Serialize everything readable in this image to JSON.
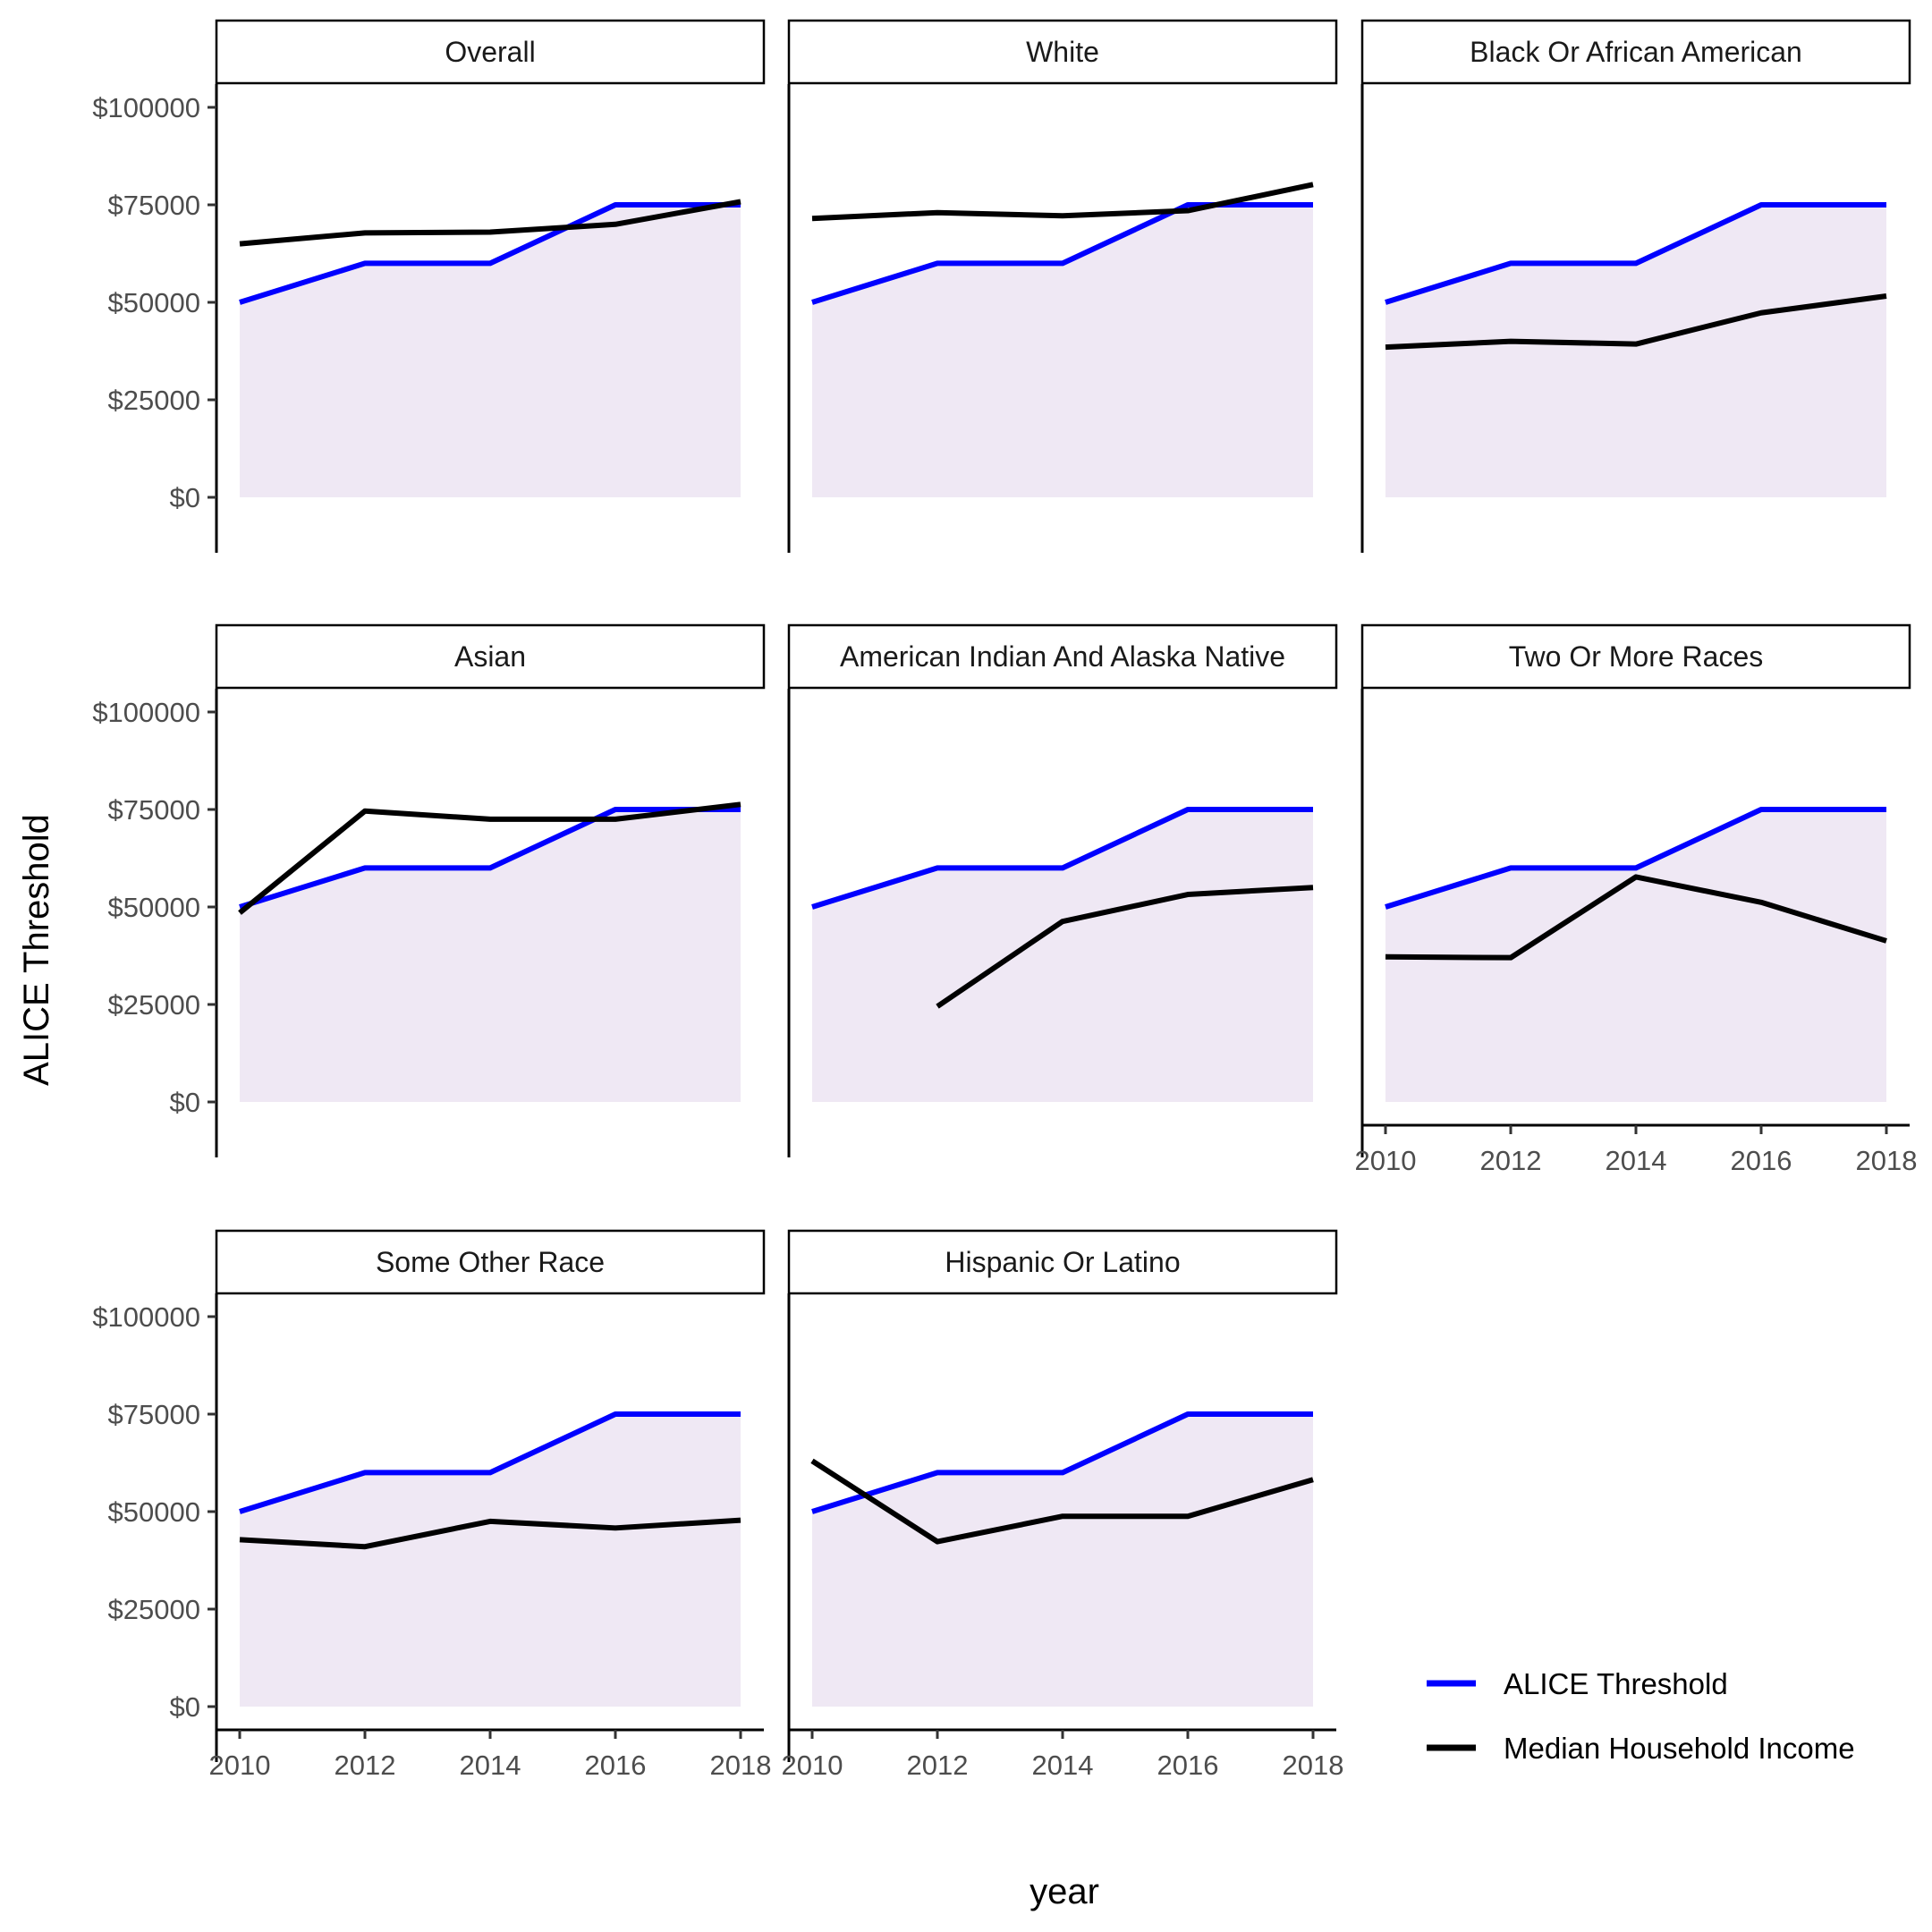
{
  "chart_data": {
    "type": "line",
    "xlabel": "year",
    "ylabel": "ALICE Threshold",
    "x_ticks": [
      "2010",
      "2012",
      "2014",
      "2016",
      "2018"
    ],
    "y_ticks": [
      "$0",
      "$25000",
      "$50000",
      "$75000",
      "$100000"
    ],
    "y_tick_values": [
      0,
      25000,
      50000,
      75000,
      100000
    ],
    "xlim": [
      2010,
      2018
    ],
    "ylim": [
      0,
      100000
    ],
    "legend": {
      "position": "bottom-right",
      "entries": [
        {
          "label": "ALICE Threshold",
          "color": "#0000ff"
        },
        {
          "label": "Median Household Income",
          "color": "#000000"
        }
      ]
    },
    "area_fill_color": "#efe8f4",
    "panels": [
      {
        "label": "Overall",
        "x": [
          2010,
          2012,
          2014,
          2016,
          2018
        ],
        "alice": [
          50000,
          60000,
          60000,
          75000,
          75000
        ],
        "median": [
          65000,
          67800,
          68000,
          70000,
          75800
        ]
      },
      {
        "label": "White",
        "x": [
          2010,
          2012,
          2014,
          2016,
          2018
        ],
        "alice": [
          50000,
          60000,
          60000,
          75000,
          75000
        ],
        "median": [
          71500,
          73000,
          72200,
          73500,
          80200
        ]
      },
      {
        "label": "Black Or African American",
        "x": [
          2010,
          2012,
          2014,
          2016,
          2018
        ],
        "alice": [
          50000,
          60000,
          60000,
          75000,
          75000
        ],
        "median": [
          38500,
          40000,
          39300,
          47300,
          51600
        ]
      },
      {
        "label": "Asian",
        "x": [
          2010,
          2012,
          2014,
          2016,
          2018
        ],
        "alice": [
          50000,
          60000,
          60000,
          75000,
          75000
        ],
        "median": [
          48500,
          74600,
          72500,
          72500,
          76300
        ]
      },
      {
        "label": "American Indian And Alaska Native",
        "x": [
          2010,
          2012,
          2014,
          2016,
          2018
        ],
        "alice": [
          50000,
          60000,
          60000,
          75000,
          75000
        ],
        "median": [
          null,
          24500,
          46300,
          53200,
          55000
        ]
      },
      {
        "label": "Two Or More Races",
        "x": [
          2010,
          2012,
          2014,
          2016,
          2018
        ],
        "alice": [
          50000,
          60000,
          60000,
          75000,
          75000
        ],
        "median": [
          37200,
          37000,
          57700,
          51200,
          41300
        ]
      },
      {
        "label": "Some Other Race",
        "x": [
          2010,
          2012,
          2014,
          2016,
          2018
        ],
        "alice": [
          50000,
          60000,
          60000,
          75000,
          75000
        ],
        "median": [
          42800,
          41000,
          47500,
          45800,
          47800
        ]
      },
      {
        "label": "Hispanic Or Latino",
        "x": [
          2010,
          2012,
          2014,
          2016,
          2018
        ],
        "alice": [
          50000,
          60000,
          60000,
          75000,
          75000
        ],
        "median": [
          63000,
          42300,
          48800,
          48800,
          58200
        ]
      }
    ]
  }
}
